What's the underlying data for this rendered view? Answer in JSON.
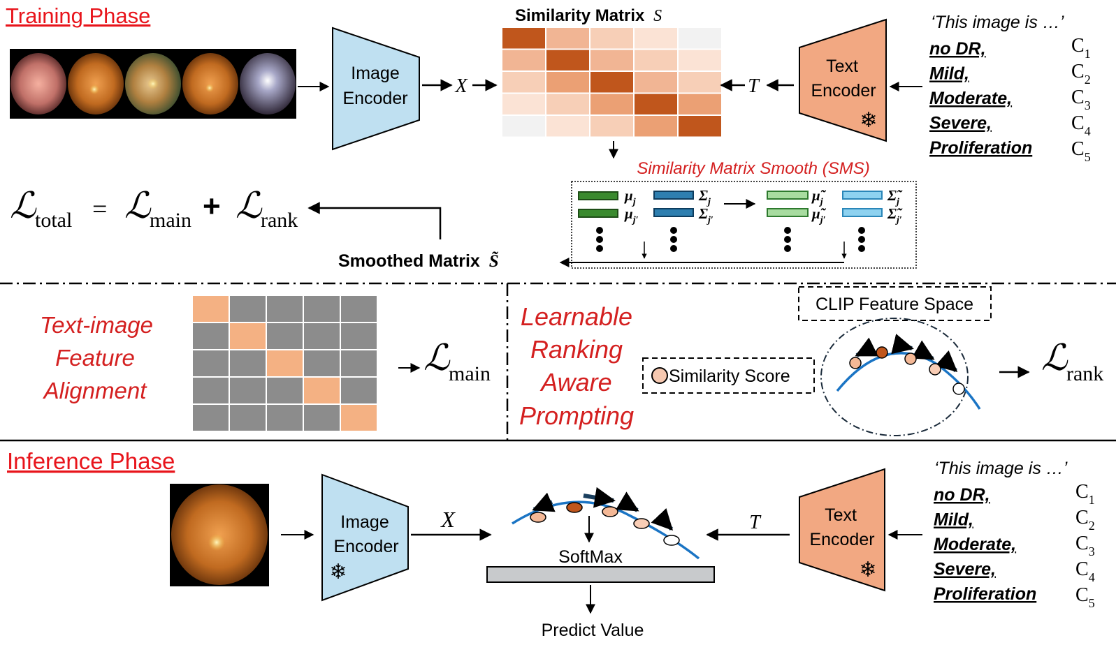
{
  "training": {
    "title": "Training Phase",
    "image_encoder": [
      "Image",
      "Encoder"
    ],
    "x_symbol": "X",
    "t_symbol": "T",
    "sim_matrix_title": "Similarity Matrix",
    "sim_matrix_symbol": "S",
    "text_encoder": [
      "Text",
      "Encoder"
    ],
    "prompt": "‘This image is …’",
    "classes": [
      "no DR,",
      "Mild,",
      "Moderate,",
      "Severe,",
      "Proliferation"
    ],
    "class_symbols": [
      "C",
      "C",
      "C",
      "C",
      "C"
    ],
    "class_subscripts": [
      "1",
      "2",
      "3",
      "4",
      "5"
    ],
    "sms_title": "Similarity Matrix Smooth (SMS)",
    "sms_labels": {
      "mu_j": "μ",
      "mu_jp": "μ",
      "sigma_j": "Σ",
      "sigma_jp": "Σ",
      "tmu_j": "μ̃",
      "tmu_jp": "μ̃",
      "tsigma_j": "Σ̃",
      "tsigma_jp": "Σ̃",
      "sub_j": "j",
      "sub_jp": "j′"
    },
    "smoothed_matrix": "Smoothed Matrix",
    "smoothed_symbol": "S̃",
    "loss": {
      "L": "ℒ",
      "total": "total",
      "eq": "=",
      "main": "main",
      "plus": "+",
      "rank": "rank"
    }
  },
  "alignment": {
    "label": [
      "Text-image",
      "Feature",
      "Alignment"
    ],
    "loss_sub": "main"
  },
  "ranking": {
    "label": [
      "Learnable",
      "Ranking",
      "Aware",
      "Prompting"
    ],
    "clip_space": "CLIP Feature Space",
    "similarity_score": "Similarity Score",
    "loss_sub": "rank"
  },
  "inference": {
    "title": "Inference Phase",
    "image_encoder": [
      "Image",
      "Encoder"
    ],
    "x_symbol": "X",
    "t_symbol": "T",
    "text_encoder": [
      "Text",
      "Encoder"
    ],
    "prompt": "‘This image is …’",
    "classes": [
      "no DR,",
      "Mild,",
      "Moderate,",
      "Severe,",
      "Proliferation"
    ],
    "class_symbols": [
      "C",
      "C",
      "C",
      "C",
      "C"
    ],
    "class_subscripts": [
      "1",
      "2",
      "3",
      "4",
      "5"
    ],
    "softmax": "SoftMax",
    "predict": "Predict Value"
  },
  "colors": {
    "red_title": "#e8141b",
    "red_italic": "#d42020",
    "encoder_blue": "#bfe0f1",
    "encoder_orange": "#f2a882",
    "sim_dark": "#c0561c",
    "grid_gray": "#8c8c8c",
    "grid_peach": "#f4b183",
    "curve_blue": "#1a74c4"
  },
  "similarity_matrix": [
    [
      5,
      2,
      1,
      0,
      -1
    ],
    [
      2,
      5,
      2,
      1,
      0
    ],
    [
      1,
      3,
      5,
      2,
      1
    ],
    [
      0,
      1,
      3,
      5,
      3
    ],
    [
      -1,
      0,
      1,
      3,
      5
    ]
  ]
}
